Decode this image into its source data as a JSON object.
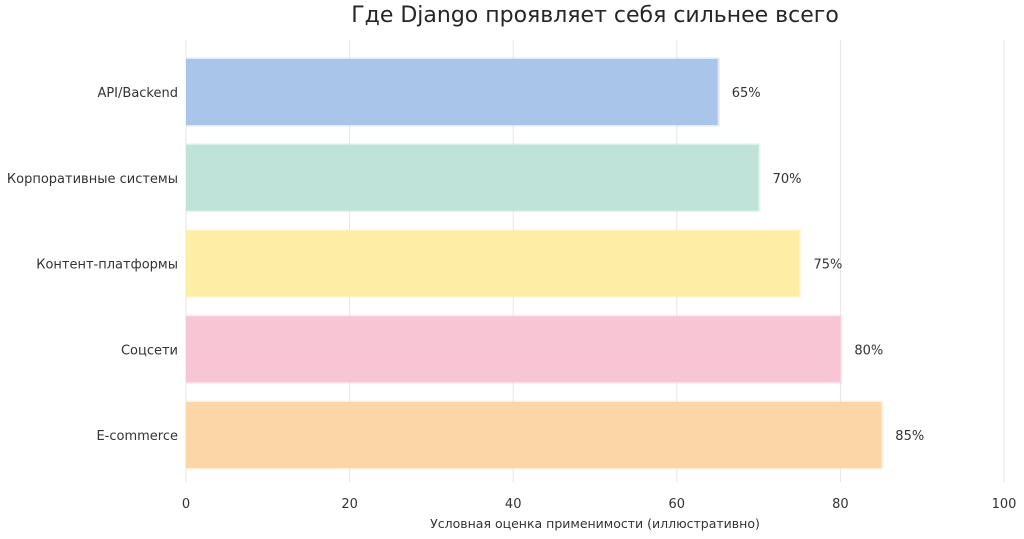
{
  "chart_data": {
    "type": "bar",
    "orientation": "horizontal",
    "title": "Где Django проявляет себя сильнее всего",
    "xlabel": "Условная оценка применимости (иллюстративно)",
    "ylabel": "",
    "xlim": [
      0,
      100
    ],
    "xticks": [
      0,
      20,
      40,
      60,
      80,
      100
    ],
    "grid": true,
    "categories": [
      "API/Backend",
      "Корпоративные системы",
      "Контент-платформы",
      "Соцсети",
      "E-commerce"
    ],
    "values": [
      65,
      70,
      75,
      80,
      85
    ],
    "value_labels": [
      "65%",
      "70%",
      "75%",
      "80%",
      "85%"
    ],
    "colors": [
      "#a9c5ea",
      "#bfe3d9",
      "#fdeea6",
      "#f7c5d3",
      "#fcd6a6"
    ]
  }
}
